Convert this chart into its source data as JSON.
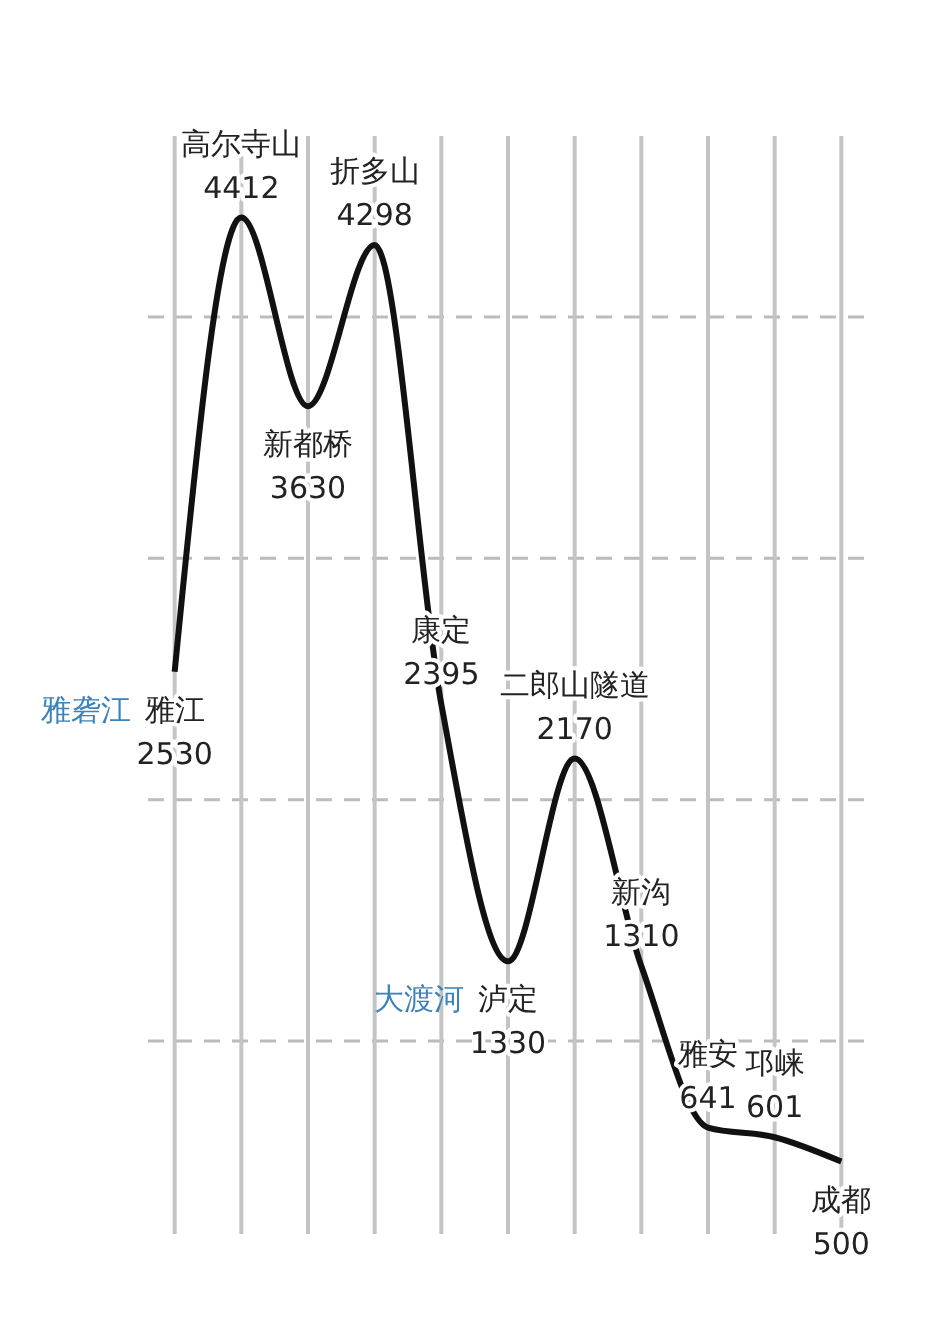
{
  "chart_data": {
    "type": "line",
    "categories": [
      "雅江",
      "高尔寺山",
      "新都桥",
      "折多山",
      "康定",
      "泸定",
      "二郎山隧道",
      "新沟",
      "雅安",
      "邛崃",
      "成都"
    ],
    "values": [
      2530,
      4412,
      3630,
      4298,
      2395,
      1330,
      2170,
      1310,
      641,
      601,
      500
    ],
    "color": "#111111",
    "ylim": [
      200,
      4750
    ],
    "yticks": [
      {
        "value": 1000,
        "label": null
      },
      {
        "value": 2000,
        "label": null
      },
      {
        "value": 3000,
        "label": null
      },
      {
        "value": 4000,
        "label": null
      }
    ],
    "tick_labels": false,
    "grid": true,
    "marker": "none",
    "line_style": "solid",
    "data_labels": true,
    "annotations": [
      {
        "text": "雅砻江",
        "x": "雅江",
        "y": 2530
      },
      {
        "text": "大渡河",
        "x": "泸定",
        "y": 1330
      }
    ]
  }
}
